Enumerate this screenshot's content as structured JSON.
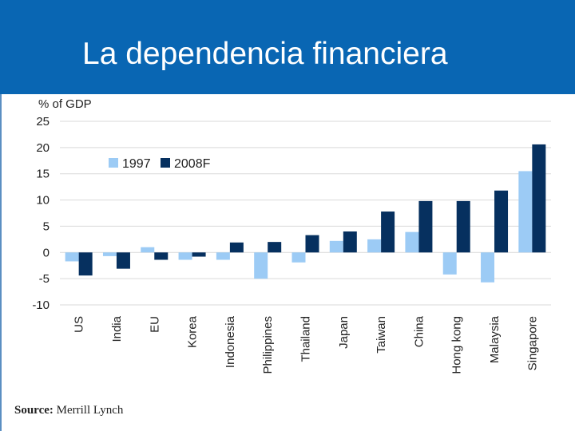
{
  "slide": {
    "title": "La dependencia financiera"
  },
  "source": {
    "label": "Source:",
    "text": "Merrill Lynch"
  },
  "colors": {
    "header": "#0966b3",
    "series_1997": "#9ccbf5",
    "series_2008F": "#06305f",
    "grid": "#d9d9d9"
  },
  "chart_data": {
    "type": "bar",
    "ylabel": "% of GDP",
    "ylim": [
      -10,
      25
    ],
    "yticks": [
      25,
      20,
      15,
      10,
      5,
      0,
      -5,
      -10
    ],
    "grid": true,
    "legend_position": "top-left",
    "categories": [
      "US",
      "India",
      "EU",
      "Korea",
      "Indonesia",
      "Philippines",
      "Thailand",
      "Japan",
      "Taiwan",
      "China",
      "Hong kong",
      "Malaysia",
      "Singapore"
    ],
    "series": [
      {
        "name": "1997",
        "values": [
          -1.7,
          -0.7,
          1.0,
          -1.4,
          -1.4,
          -5.0,
          -1.9,
          2.2,
          2.5,
          3.9,
          -4.2,
          -5.7,
          15.5
        ]
      },
      {
        "name": "2008F",
        "values": [
          -4.4,
          -3.1,
          -1.4,
          -0.8,
          1.9,
          2.0,
          3.3,
          4.0,
          7.8,
          9.8,
          9.8,
          11.8,
          20.6
        ]
      }
    ]
  }
}
